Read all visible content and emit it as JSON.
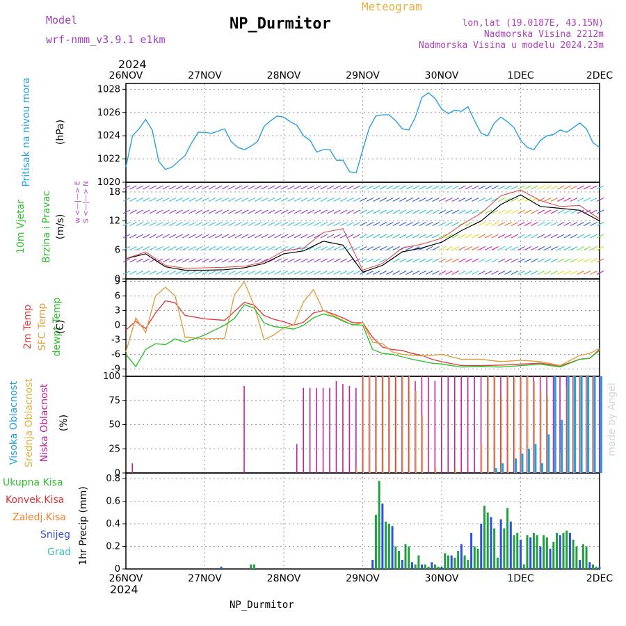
{
  "header": {
    "model_label": "Model",
    "model_value": "wrf-nmm_v3.9.1 e1km",
    "title": "NP_Durmitor",
    "meteogram_label": "Meteogram",
    "lonlat": "lon,lat (19.0187E, 43.15N)",
    "altitude": "Nadmorska Visina 2212m",
    "model_altitude": "Nadmorska Visina u modelu 2024.23m",
    "year_top": "2024",
    "year_bottom": "2024",
    "footer": "NP_Durmitor",
    "watermark": "made by Angel"
  },
  "colors": {
    "pressure": "#2aa0e0",
    "temp2m": "#e04040",
    "sfc_temp": "#e0a040",
    "dewpt": "#30c030",
    "cloud_high": "#20a0e0",
    "cloud_mid": "#e0b040",
    "cloud_low": "#c020a0",
    "precip_total": "#20a040",
    "precip_conv": "#e03030",
    "precip_frozen": "#f08030",
    "precip_snow": "#3050e0",
    "precip_grad": "#40c0c0",
    "wind_gust": "#e04040"
  },
  "panel_labels": {
    "pressure": {
      "title": "Pritisak na nivou mora",
      "unit": "(hPa)"
    },
    "wind": {
      "title1": "10m Vjetar",
      "title2": "Brzina i Pravac",
      "unit": "(m/s)",
      "compass": "w <—|—> E",
      "compass2": "S <—|—> N"
    },
    "temp": {
      "t1": "2m Temp",
      "t2": "SFC Temp",
      "t3": "dewpt Temp",
      "unit": "(C)"
    },
    "cloud": {
      "c1": "Visoka Oblacnost",
      "c2": "Srednja Oblacnost",
      "c3": "Niska Oblacnost",
      "unit": "(%)"
    },
    "precip": {
      "p1": "Ukupna Kisa",
      "p2": "Konvek.Kisa",
      "p3": "Zaledj.Kisa",
      "p4": "Snijeg",
      "p5": "Grad",
      "unit": "1hr Precip (mm)"
    }
  },
  "chart_data": [
    {
      "type": "line",
      "name": "pressure",
      "x_labels": [
        "26NOV",
        "27NOV",
        "28NOV",
        "29NOV",
        "30NOV",
        "1DEC",
        "2DEC"
      ],
      "ylim": [
        1020,
        1028.5
      ],
      "yticks": [
        1020,
        1022,
        1024,
        1026,
        1028
      ],
      "ylabel": "(hPa)",
      "x": [
        0,
        2,
        4,
        6,
        8,
        10,
        12,
        14,
        16,
        18,
        20,
        22,
        24,
        26,
        28,
        30,
        32,
        34,
        36,
        38,
        40,
        42,
        44,
        46,
        48,
        50,
        52,
        54,
        56,
        58,
        60,
        62,
        64,
        66,
        68,
        70,
        72,
        74,
        76,
        78,
        80,
        82,
        84,
        86,
        88,
        90,
        92,
        94,
        96,
        98,
        100,
        102,
        104,
        106,
        108,
        110,
        112,
        114,
        116,
        118,
        120,
        122,
        124,
        126,
        128,
        130,
        132,
        134,
        136,
        138,
        140,
        142,
        144
      ],
      "values": [
        1021.3,
        1024.0,
        1024.6,
        1025.4,
        1024.5,
        1021.8,
        1021.1,
        1021.3,
        1021.8,
        1022.3,
        1023.4,
        1024.3,
        1024.3,
        1024.2,
        1024.4,
        1024.6,
        1023.5,
        1023.0,
        1022.8,
        1023.1,
        1023.5,
        1024.8,
        1025.3,
        1025.7,
        1025.6,
        1025.2,
        1024.9,
        1024.0,
        1023.6,
        1022.6,
        1022.8,
        1022.8,
        1021.9,
        1021.9,
        1020.9,
        1020.8,
        1022.8,
        1024.7,
        1025.7,
        1025.8,
        1025.8,
        1025.3,
        1024.6,
        1024.5,
        1025.6,
        1027.3,
        1027.7,
        1027.2,
        1026.3,
        1025.9,
        1026.2,
        1026.1,
        1026.5,
        1025.3,
        1024.2,
        1024.0,
        1025.1,
        1025.6,
        1025.2,
        1024.7,
        1023.6,
        1023.0,
        1022.8,
        1023.6,
        1024.0,
        1024.1,
        1024.5,
        1024.3,
        1024.7,
        1025.1,
        1024.6,
        1023.4,
        1023.0
      ]
    },
    {
      "type": "line",
      "name": "wind_speed",
      "ylim": [
        0,
        20
      ],
      "yticks": [
        0,
        6,
        12,
        18
      ],
      "ylabel": "(m/s)",
      "x": [
        0,
        6,
        12,
        18,
        24,
        30,
        36,
        42,
        48,
        54,
        60,
        66,
        72,
        78,
        84,
        90,
        96,
        102,
        108,
        114,
        120,
        126,
        132,
        138,
        144
      ],
      "values": [
        4.2,
        5.2,
        2.5,
        1.8,
        1.8,
        1.9,
        2.3,
        3.2,
        5.2,
        5.8,
        7.8,
        7.0,
        1.4,
        2.8,
        5.6,
        6.4,
        7.6,
        10.0,
        12.0,
        15.4,
        17.4,
        15.0,
        14.6,
        14.2,
        12.0
      ],
      "gust_values": [
        4.2,
        5.6,
        2.8,
        2.2,
        2.3,
        2.4,
        2.6,
        3.5,
        5.8,
        6.4,
        9.6,
        10.4,
        1.8,
        3.2,
        6.4,
        7.2,
        8.4,
        11.2,
        13.6,
        17.2,
        18.4,
        16.2,
        15.0,
        15.2,
        12.4
      ]
    },
    {
      "type": "line",
      "name": "temperature",
      "ylim": [
        -10.5,
        9.5
      ],
      "yticks": [
        -9,
        -6,
        -3,
        0,
        3,
        6,
        9
      ],
      "ylabel": "(C)",
      "series": [
        {
          "name": "2m Temp",
          "x": [
            0,
            3,
            6,
            9,
            12,
            15,
            18,
            24,
            30,
            33,
            36,
            39,
            42,
            45,
            48,
            51,
            54,
            57,
            60,
            63,
            66,
            69,
            72,
            75,
            78,
            81,
            84,
            87,
            90,
            93,
            96,
            102,
            108,
            114,
            120,
            126,
            132,
            138,
            141,
            144
          ],
          "values": [
            -1.0,
            0.8,
            -0.7,
            2.5,
            5.0,
            4.6,
            2.0,
            1.3,
            1.0,
            2.8,
            4.7,
            4.1,
            2.0,
            1.2,
            0.7,
            0.0,
            0.6,
            2.5,
            3.0,
            2.3,
            1.5,
            0.5,
            0.5,
            -2.5,
            -4.5,
            -5.0,
            -5.2,
            -5.8,
            -6.2,
            -7.0,
            -7.5,
            -8.3,
            -8.3,
            -8.2,
            -8.0,
            -7.8,
            -8.4,
            -7.0,
            -6.8,
            -5.0
          ]
        },
        {
          "name": "SFC Temp",
          "x": [
            0,
            3,
            6,
            9,
            12,
            15,
            18,
            24,
            30,
            33,
            36,
            39,
            42,
            45,
            48,
            51,
            54,
            57,
            60,
            63,
            66,
            69,
            72,
            75,
            78,
            81,
            84,
            87,
            90,
            93,
            96,
            102,
            108,
            114,
            120,
            126,
            132,
            138,
            141,
            144
          ],
          "values": [
            -5.5,
            1.5,
            -1.5,
            6.0,
            7.8,
            6.0,
            -2.5,
            -2.8,
            -2.7,
            6.3,
            8.9,
            4.0,
            -3.0,
            -2.0,
            -0.5,
            0.0,
            4.8,
            7.3,
            3.0,
            2.0,
            1.0,
            0.0,
            0.5,
            -3.5,
            -3.8,
            -5.5,
            -6.0,
            -6.2,
            -6.3,
            -6.2,
            -6.0,
            -7.0,
            -7.0,
            -7.5,
            -7.2,
            -7.5,
            -8.3,
            -6.2,
            -5.8,
            -4.8
          ]
        },
        {
          "name": "dewpt Temp",
          "x": [
            0,
            3,
            6,
            9,
            12,
            15,
            18,
            24,
            30,
            33,
            36,
            39,
            42,
            45,
            48,
            51,
            54,
            57,
            60,
            63,
            66,
            69,
            72,
            75,
            78,
            81,
            84,
            87,
            90,
            93,
            96,
            102,
            108,
            114,
            120,
            126,
            132,
            138,
            141,
            144
          ],
          "values": [
            -6.0,
            -8.5,
            -5.0,
            -3.8,
            -4.0,
            -2.8,
            -3.5,
            -2.0,
            0.0,
            1.4,
            4.2,
            3.5,
            0.5,
            -0.3,
            -0.5,
            -0.8,
            0.0,
            1.5,
            2.3,
            1.8,
            0.8,
            0.1,
            0.0,
            -5.0,
            -5.8,
            -6.0,
            -6.5,
            -7.0,
            -7.4,
            -7.8,
            -8.0,
            -8.6,
            -8.5,
            -8.6,
            -8.3,
            -8.0,
            -8.6,
            -7.0,
            -6.8,
            -5.2
          ]
        }
      ]
    },
    {
      "type": "bar",
      "name": "cloud_cover",
      "ylim": [
        0,
        100
      ],
      "yticks": [
        0,
        25,
        50,
        75,
        100
      ],
      "ylabel": "(%)",
      "series": [
        {
          "name": "Niska Oblacnost",
          "x": [
            2,
            36,
            52,
            54,
            56,
            58,
            60,
            62,
            64,
            66,
            68,
            70,
            72,
            74,
            76,
            78,
            80,
            82,
            84,
            86,
            88,
            90,
            92,
            94,
            96,
            98,
            100,
            102,
            104,
            106,
            108,
            110,
            112,
            114,
            116,
            118,
            120,
            122,
            124,
            126,
            128,
            130,
            132,
            134,
            136,
            138,
            140,
            142,
            144
          ],
          "values": [
            10,
            90,
            30,
            88,
            88,
            88,
            88,
            88,
            95,
            92,
            90,
            88,
            100,
            100,
            100,
            100,
            100,
            100,
            100,
            100,
            95,
            100,
            100,
            95,
            100,
            100,
            100,
            100,
            100,
            100,
            100,
            100,
            100,
            100,
            100,
            100,
            100,
            100,
            100,
            100,
            100,
            100,
            100,
            100,
            100,
            100,
            100,
            100,
            100
          ]
        },
        {
          "name": "Srednja Oblacnost",
          "x": [
            70,
            72,
            74,
            76,
            78,
            80,
            82,
            84,
            86,
            88,
            90,
            94,
            100,
            108,
            110,
            112,
            114,
            116,
            118,
            120,
            122,
            124,
            126,
            128,
            132,
            134,
            136,
            138,
            140,
            142
          ],
          "values": [
            5,
            100,
            100,
            100,
            100,
            100,
            100,
            100,
            100,
            85,
            60,
            5,
            5,
            30,
            100,
            100,
            80,
            100,
            100,
            100,
            100,
            95,
            85,
            80,
            20,
            90,
            100,
            100,
            100,
            100
          ]
        },
        {
          "name": "Visoka Oblacnost",
          "x": [
            112,
            114,
            118,
            120,
            122,
            124,
            126,
            128,
            130,
            132,
            134,
            136,
            138,
            140,
            142,
            144
          ],
          "values": [
            5,
            10,
            15,
            20,
            25,
            30,
            10,
            40,
            100,
            55,
            100,
            100,
            100,
            100,
            100,
            100
          ]
        }
      ]
    },
    {
      "type": "bar",
      "name": "precipitation",
      "ylim": [
        0,
        0.85
      ],
      "yticks": [
        0,
        0.2,
        0.4,
        0.6,
        0.8
      ],
      "ylabel": "1hr Precip (mm)",
      "x": [
        29,
        38,
        39,
        75,
        76,
        77,
        78,
        79,
        80,
        81,
        82,
        83,
        84,
        85,
        86,
        87,
        88,
        89,
        90,
        91,
        92,
        93,
        94,
        95,
        96,
        97,
        98,
        99,
        100,
        101,
        102,
        103,
        104,
        105,
        106,
        107,
        108,
        109,
        110,
        111,
        112,
        113,
        114,
        115,
        116,
        117,
        118,
        119,
        120,
        121,
        122,
        123,
        124,
        125,
        126,
        127,
        128,
        129,
        130,
        131,
        132,
        133,
        134,
        135,
        136,
        137,
        138,
        139,
        140,
        141,
        142,
        143,
        144
      ],
      "values": [
        0.02,
        0.04,
        0.04,
        0.08,
        0.48,
        0.78,
        0.58,
        0.42,
        0.4,
        0.38,
        0.2,
        0.16,
        0.08,
        0.22,
        0.2,
        0.06,
        0.04,
        0.12,
        0.04,
        0.04,
        0.02,
        0.06,
        0.04,
        0.02,
        0.02,
        0.14,
        0.12,
        0.12,
        0.1,
        0.16,
        0.22,
        0.12,
        0.08,
        0.32,
        0.2,
        0.18,
        0.4,
        0.56,
        0.5,
        0.46,
        0.36,
        0.1,
        0.44,
        0.36,
        0.54,
        0.42,
        0.3,
        0.32,
        0.26,
        0.04,
        0.3,
        0.28,
        0.32,
        0.3,
        0.2,
        0.3,
        0.28,
        0.18,
        0.24,
        0.32,
        0.3,
        0.32,
        0.34,
        0.32,
        0.26,
        0.2,
        0.08,
        0.22,
        0.2,
        0.06,
        0.04,
        0.02,
        0.02
      ]
    }
  ]
}
